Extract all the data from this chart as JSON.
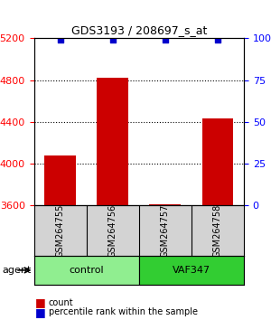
{
  "title": "GDS3193 / 208697_s_at",
  "samples": [
    "GSM264755",
    "GSM264756",
    "GSM264757",
    "GSM264758"
  ],
  "counts": [
    4080,
    4820,
    3615,
    4430
  ],
  "percentile_ranks": [
    99,
    99,
    99,
    99
  ],
  "groups": [
    "control",
    "control",
    "VAF347",
    "VAF347"
  ],
  "group_colors": [
    "#90EE90",
    "#90EE90",
    "#32CD32",
    "#32CD32"
  ],
  "group_label_colors": [
    "#90EE90",
    "#32CD32"
  ],
  "group_names": [
    "control",
    "VAF347"
  ],
  "ylim_left": [
    3600,
    5200
  ],
  "ylim_right": [
    0,
    100
  ],
  "yticks_left": [
    3600,
    4000,
    4400,
    4800,
    5200
  ],
  "yticks_right": [
    0,
    25,
    50,
    75,
    100
  ],
  "bar_color": "#CC0000",
  "dot_color": "#0000CC",
  "grid_color": "#000000",
  "background_color": "#ffffff",
  "bar_width": 0.6,
  "legend_count_color": "#CC0000",
  "legend_pct_color": "#0000CC"
}
